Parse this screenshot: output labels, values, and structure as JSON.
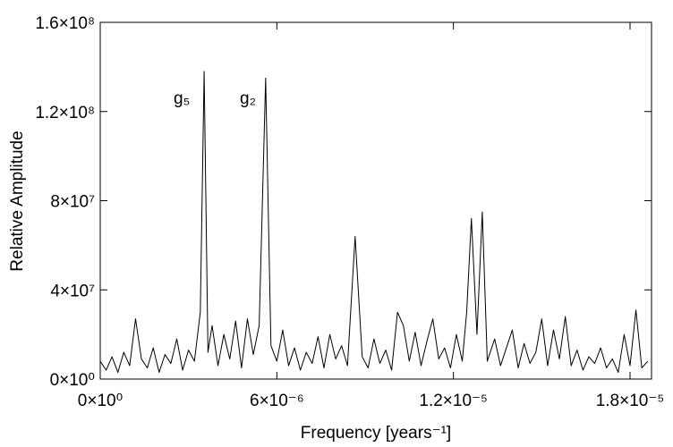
{
  "chart_data": {
    "type": "line",
    "x_label": "Frequency [years⁻¹]",
    "y_label": "Relative Amplitude",
    "annotations": [
      "g₅",
      "g₂"
    ],
    "xlim": [
      0,
      1.873e-05
    ],
    "ylim": [
      0,
      160000000.0
    ],
    "xticks": [
      {
        "value": 0,
        "label": "0×10⁰"
      },
      {
        "value": 6e-06,
        "label": "6×10⁻⁶"
      },
      {
        "value": 1.2e-05,
        "label": "1.2×10⁻⁵"
      },
      {
        "value": 1.8e-05,
        "label": "1.8×10⁻⁵"
      }
    ],
    "yticks": [
      {
        "value": 0,
        "label": "0×10⁰"
      },
      {
        "value": 40000000.0,
        "label": "4×10⁷"
      },
      {
        "value": 80000000.0,
        "label": "8×10⁷"
      },
      {
        "value": 120000000.0,
        "label": "1.2×10⁸"
      },
      {
        "value": 160000000.0,
        "label": "1.6×10⁸"
      }
    ],
    "color": "#000000",
    "x": [
      0,
      2e-07,
      4e-07,
      6e-07,
      8e-07,
      1e-06,
      1.2e-06,
      1.4e-06,
      1.6e-06,
      1.8e-06,
      2e-06,
      2.2e-06,
      2.4e-06,
      2.6e-06,
      2.8e-06,
      3e-06,
      3.2e-06,
      3.4e-06,
      3.53e-06,
      3.66e-06,
      3.8e-06,
      4e-06,
      4.2e-06,
      4.4e-06,
      4.6e-06,
      4.8e-06,
      5e-06,
      5.2e-06,
      5.4e-06,
      5.62e-06,
      5.8e-06,
      6e-06,
      6.2e-06,
      6.4e-06,
      6.6e-06,
      6.8e-06,
      7e-06,
      7.2e-06,
      7.4e-06,
      7.6e-06,
      7.8e-06,
      8e-06,
      8.2e-06,
      8.4e-06,
      8.66e-06,
      8.9e-06,
      9.1e-06,
      9.3e-06,
      9.5e-06,
      9.7e-06,
      9.9e-06,
      1.01e-05,
      1.03e-05,
      1.05e-05,
      1.07e-05,
      1.09e-05,
      1.11e-05,
      1.13e-05,
      1.15e-05,
      1.17e-05,
      1.19e-05,
      1.21e-05,
      1.23e-05,
      1.245e-05,
      1.261e-05,
      1.28e-05,
      1.298e-05,
      1.315e-05,
      1.34e-05,
      1.36e-05,
      1.38e-05,
      1.4e-05,
      1.42e-05,
      1.44e-05,
      1.46e-05,
      1.48e-05,
      1.5e-05,
      1.52e-05,
      1.54e-05,
      1.56e-05,
      1.58e-05,
      1.6e-05,
      1.62e-05,
      1.64e-05,
      1.66e-05,
      1.68e-05,
      1.7e-05,
      1.72e-05,
      1.74e-05,
      1.76e-05,
      1.78e-05,
      1.8e-05,
      1.82e-05,
      1.84e-05,
      1.86e-05
    ],
    "values": [
      8000000.0,
      4000000.0,
      10000000.0,
      3000000.0,
      12000000.0,
      6000000.0,
      27000000.0,
      9000000.0,
      5000000.0,
      14000000.0,
      3000000.0,
      11000000.0,
      7000000.0,
      18000000.0,
      4000000.0,
      13000000.0,
      8000000.0,
      30000000.0,
      138000000.0,
      12000000.0,
      24000000.0,
      6000000.0,
      20000000.0,
      9000000.0,
      26000000.0,
      5000000.0,
      27000000.0,
      11000000.0,
      24000000.0,
      135000000.0,
      15000000.0,
      8000000.0,
      22000000.0,
      6000000.0,
      14000000.0,
      4000000.0,
      12000000.0,
      7000000.0,
      19000000.0,
      5000000.0,
      20000000.0,
      9000000.0,
      15000000.0,
      6000000.0,
      64000000.0,
      10000000.0,
      5000000.0,
      18000000.0,
      7000000.0,
      13000000.0,
      4000000.0,
      30000000.0,
      24000000.0,
      8000000.0,
      21000000.0,
      6000000.0,
      17000000.0,
      27000000.0,
      9000000.0,
      14000000.0,
      5000000.0,
      20000000.0,
      8000000.0,
      30000000.0,
      72000000.0,
      20000000.0,
      75000000.0,
      8000000.0,
      18000000.0,
      6000000.0,
      14000000.0,
      22000000.0,
      5000000.0,
      16000000.0,
      7000000.0,
      12000000.0,
      27000000.0,
      6000000.0,
      22000000.0,
      9000000.0,
      28000000.0,
      6000000.0,
      13000000.0,
      4000000.0,
      10000000.0,
      7000000.0,
      14000000.0,
      5000000.0,
      9000000.0,
      3000000.0,
      20000000.0,
      6000000.0,
      31000000.0,
      5000000.0,
      8000000.0
    ]
  }
}
